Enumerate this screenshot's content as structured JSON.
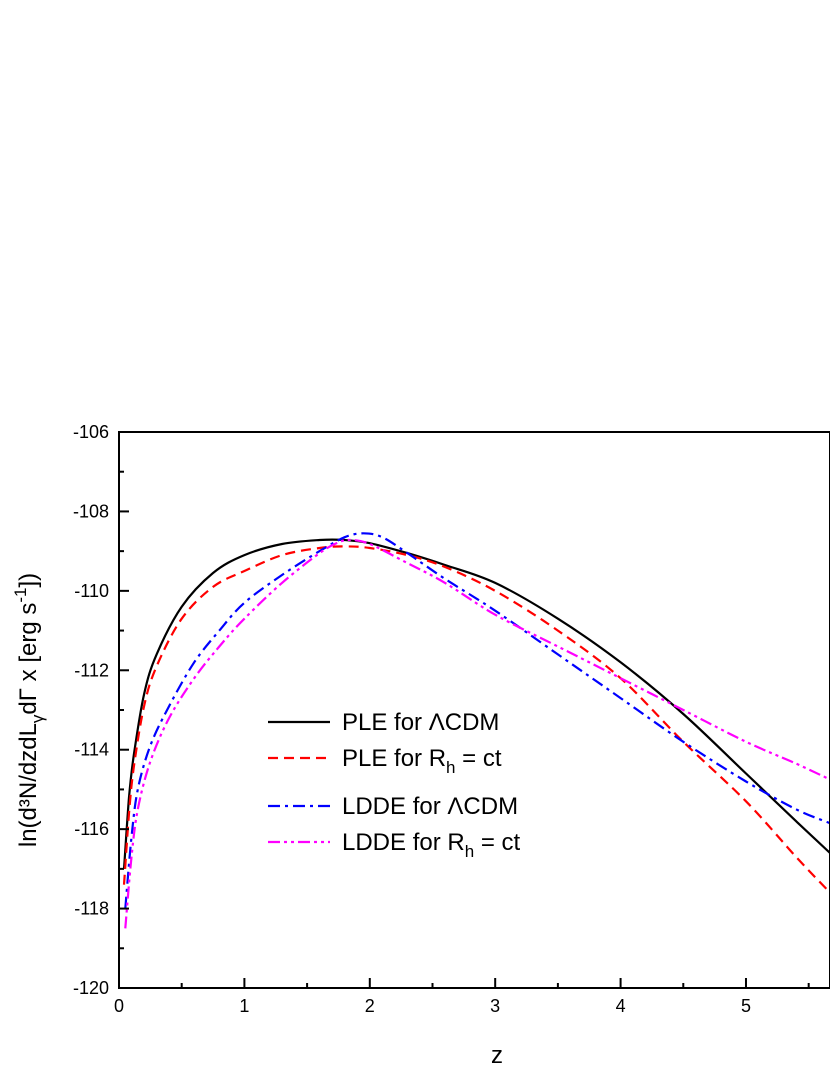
{
  "chart_data": {
    "type": "line",
    "title": "",
    "xlabel": "z",
    "ylabel": "ln(d³N/dzdL",
    "ylabel_sub": "γ",
    "ylabel_mid": "dΓ x [erg s",
    "ylabel_sup": "-1",
    "ylabel_end": "])",
    "xlim": [
      0,
      5.67
    ],
    "ylim": [
      -120,
      -106
    ],
    "x_ticks": [
      0,
      1,
      2,
      3,
      4,
      5
    ],
    "x_tick_labels": [
      "0",
      "1",
      "2",
      "3",
      "4",
      "5"
    ],
    "y_ticks": [
      -120,
      -118,
      -116,
      -114,
      -112,
      -110,
      -108,
      -106
    ],
    "y_tick_labels": [
      "-120",
      "-118",
      "-116",
      "-114",
      "-112",
      "-110",
      "-108",
      "-106"
    ],
    "grid": false,
    "legend_position": "center",
    "series": [
      {
        "name_main": "PLE for ",
        "name_rest": "ΛCDM",
        "name_sub": "",
        "color": "#000000",
        "dash": "solid",
        "x": [
          0.04,
          0.08,
          0.12,
          0.2,
          0.3,
          0.5,
          0.75,
          1.0,
          1.3,
          1.6,
          1.8,
          2.0,
          2.3,
          2.6,
          3.0,
          3.5,
          4.0,
          4.5,
          5.0,
          5.4,
          5.67
        ],
        "y": [
          -117.0,
          -115.2,
          -114.1,
          -112.6,
          -111.6,
          -110.4,
          -109.55,
          -109.1,
          -108.82,
          -108.72,
          -108.72,
          -108.8,
          -109.05,
          -109.35,
          -109.8,
          -110.7,
          -111.8,
          -113.1,
          -114.6,
          -115.8,
          -116.6
        ]
      },
      {
        "name_main": "PLE for R",
        "name_rest": " = ct",
        "name_sub": "h",
        "color": "#ff0000",
        "dash": "dashed",
        "x": [
          0.04,
          0.08,
          0.12,
          0.2,
          0.3,
          0.5,
          0.75,
          1.0,
          1.3,
          1.6,
          1.8,
          2.0,
          2.3,
          2.6,
          3.0,
          3.5,
          4.0,
          4.5,
          5.0,
          5.4,
          5.67
        ],
        "y": [
          -117.4,
          -115.6,
          -114.4,
          -112.9,
          -111.9,
          -110.7,
          -109.9,
          -109.5,
          -109.1,
          -108.92,
          -108.88,
          -108.92,
          -109.1,
          -109.4,
          -110.0,
          -111.0,
          -112.2,
          -113.8,
          -115.3,
          -116.7,
          -117.6
        ]
      },
      {
        "name_main": "LDDE for ",
        "name_rest": "ΛCDM",
        "name_sub": "",
        "color": "#0000ff",
        "dash": "dashdot",
        "x": [
          0.05,
          0.1,
          0.15,
          0.25,
          0.4,
          0.6,
          0.8,
          1.0,
          1.3,
          1.6,
          1.8,
          1.95,
          2.1,
          2.3,
          2.6,
          3.0,
          3.5,
          4.0,
          4.5,
          5.0,
          5.4,
          5.67
        ],
        "y": [
          -118.0,
          -116.2,
          -115.0,
          -113.9,
          -112.9,
          -111.8,
          -111.0,
          -110.3,
          -109.6,
          -109.0,
          -108.65,
          -108.55,
          -108.65,
          -109.05,
          -109.7,
          -110.5,
          -111.6,
          -112.7,
          -113.8,
          -114.8,
          -115.5,
          -115.85
        ]
      },
      {
        "name_main": "LDDE for R",
        "name_rest": " = ct",
        "name_sub": "h",
        "color": "#ff00ff",
        "dash": "dashdotdot",
        "x": [
          0.05,
          0.1,
          0.15,
          0.25,
          0.4,
          0.6,
          0.8,
          1.0,
          1.3,
          1.6,
          1.75,
          1.85,
          2.0,
          2.3,
          2.6,
          3.0,
          3.5,
          4.0,
          4.5,
          5.0,
          5.4,
          5.67
        ],
        "y": [
          -118.5,
          -116.7,
          -115.5,
          -114.3,
          -113.2,
          -112.2,
          -111.4,
          -110.7,
          -109.8,
          -109.05,
          -108.78,
          -108.72,
          -108.82,
          -109.3,
          -109.8,
          -110.6,
          -111.4,
          -112.2,
          -113.0,
          -113.8,
          -114.35,
          -114.75
        ]
      }
    ]
  }
}
